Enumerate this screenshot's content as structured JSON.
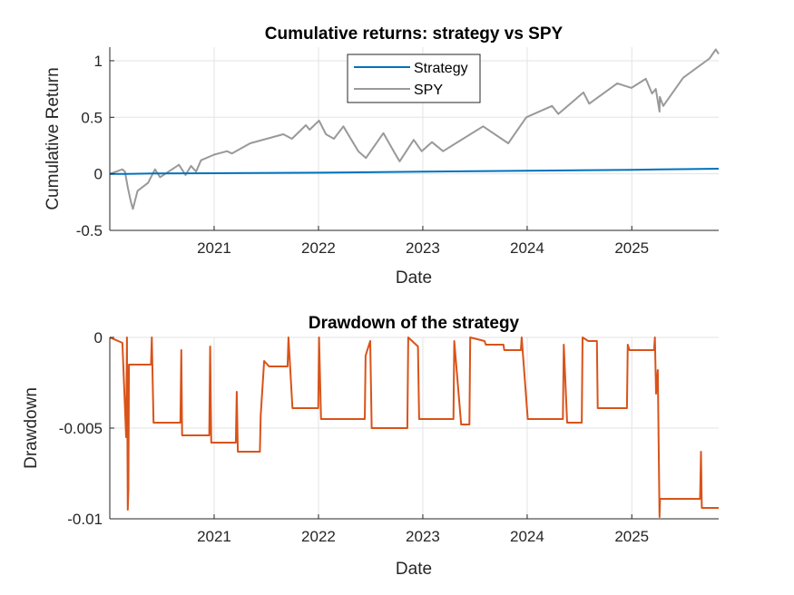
{
  "chart_data": [
    {
      "type": "line",
      "title": "Cumulative returns: strategy vs SPY",
      "xlabel": "Date",
      "ylabel": "Cumulative Return",
      "xlim": [
        "2020-01-02",
        "2025-11-01"
      ],
      "ylim": [
        -0.5,
        1.12
      ],
      "xticks": [
        "2021",
        "2022",
        "2023",
        "2024",
        "2025"
      ],
      "yticks": [
        1,
        0.5,
        0,
        -0.5
      ],
      "ytick_labels": [
        "1",
        "0.5",
        "0",
        "-0.5"
      ],
      "grid": true,
      "legend": "top-center",
      "series": [
        {
          "name": "Strategy",
          "color": "#0072BD",
          "points": [
            [
              "2020-01-02",
              0.0
            ],
            [
              "2020-03-01",
              0.0
            ],
            [
              "2020-06-01",
              0.003
            ],
            [
              "2021-01-01",
              0.005
            ],
            [
              "2022-01-01",
              0.01
            ],
            [
              "2023-01-01",
              0.02
            ],
            [
              "2024-01-01",
              0.028
            ],
            [
              "2025-01-01",
              0.036
            ],
            [
              "2025-04-10",
              0.04
            ],
            [
              "2025-11-01",
              0.045
            ]
          ]
        },
        {
          "name": "SPY",
          "color": "#999999",
          "points": [
            [
              "2020-01-02",
              0.0
            ],
            [
              "2020-02-15",
              0.04
            ],
            [
              "2020-02-24",
              0.02
            ],
            [
              "2020-03-05",
              -0.12
            ],
            [
              "2020-03-16",
              -0.25
            ],
            [
              "2020-03-23",
              -0.31
            ],
            [
              "2020-04-08",
              -0.15
            ],
            [
              "2020-05-15",
              -0.08
            ],
            [
              "2020-06-08",
              0.04
            ],
            [
              "2020-06-26",
              -0.03
            ],
            [
              "2020-08-31",
              0.08
            ],
            [
              "2020-09-23",
              -0.01
            ],
            [
              "2020-10-12",
              0.07
            ],
            [
              "2020-10-30",
              0.02
            ],
            [
              "2020-11-16",
              0.12
            ],
            [
              "2021-01-01",
              0.17
            ],
            [
              "2021-02-15",
              0.2
            ],
            [
              "2021-03-04",
              0.18
            ],
            [
              "2021-05-07",
              0.27
            ],
            [
              "2021-08-31",
              0.35
            ],
            [
              "2021-09-30",
              0.31
            ],
            [
              "2021-11-18",
              0.43
            ],
            [
              "2021-12-01",
              0.39
            ],
            [
              "2022-01-03",
              0.47
            ],
            [
              "2022-01-27",
              0.35
            ],
            [
              "2022-02-24",
              0.31
            ],
            [
              "2022-03-29",
              0.42
            ],
            [
              "2022-05-20",
              0.2
            ],
            [
              "2022-06-16",
              0.14
            ],
            [
              "2022-08-16",
              0.36
            ],
            [
              "2022-09-30",
              0.16
            ],
            [
              "2022-10-12",
              0.11
            ],
            [
              "2022-11-30",
              0.3
            ],
            [
              "2022-12-28",
              0.2
            ],
            [
              "2023-02-02",
              0.28
            ],
            [
              "2023-03-13",
              0.2
            ],
            [
              "2023-07-31",
              0.42
            ],
            [
              "2023-10-27",
              0.27
            ],
            [
              "2023-12-29",
              0.5
            ],
            [
              "2024-03-28",
              0.6
            ],
            [
              "2024-04-19",
              0.53
            ],
            [
              "2024-07-16",
              0.72
            ],
            [
              "2024-08-05",
              0.62
            ],
            [
              "2024-11-11",
              0.8
            ],
            [
              "2024-12-31",
              0.76
            ],
            [
              "2025-02-19",
              0.84
            ],
            [
              "2025-03-13",
              0.71
            ],
            [
              "2025-03-26",
              0.75
            ],
            [
              "2025-04-08",
              0.55
            ],
            [
              "2025-04-09",
              0.68
            ],
            [
              "2025-04-21",
              0.6
            ],
            [
              "2025-06-30",
              0.85
            ],
            [
              "2025-09-30",
              1.02
            ],
            [
              "2025-10-22",
              1.1
            ],
            [
              "2025-11-01",
              1.06
            ]
          ]
        }
      ]
    },
    {
      "type": "line",
      "title": "Drawdown of the strategy",
      "xlabel": "Date",
      "ylabel": "Drawdown",
      "xlim": [
        "2020-01-02",
        "2025-11-01"
      ],
      "ylim": [
        -0.01,
        0
      ],
      "xticks": [
        "2021",
        "2022",
        "2023",
        "2024",
        "2025"
      ],
      "yticks": [
        0,
        -0.005,
        -0.01
      ],
      "ytick_labels": [
        "0",
        "-0.005",
        "-0.01"
      ],
      "grid": true,
      "series": [
        {
          "color": "#D95319",
          "step_points": [
            [
              "2020-01-02",
              0
            ],
            [
              "2020-02-15",
              -0.0003
            ],
            [
              "2020-02-28",
              -0.0055
            ],
            [
              "2020-03-02",
              0
            ],
            [
              "2020-03-05",
              -0.0095
            ],
            [
              "2020-03-07",
              -0.0084
            ],
            [
              "2020-03-09",
              -0.0015
            ],
            [
              "2020-05-25",
              -0.0015
            ],
            [
              "2020-05-28",
              0
            ],
            [
              "2020-06-03",
              -0.0047
            ],
            [
              "2020-09-05",
              -0.0047
            ],
            [
              "2020-09-08",
              -0.0007
            ],
            [
              "2020-09-11",
              -0.0054
            ],
            [
              "2020-12-15",
              -0.0054
            ],
            [
              "2020-12-18",
              -0.0005
            ],
            [
              "2020-12-22",
              -0.0058
            ],
            [
              "2021-03-18",
              -0.0058
            ],
            [
              "2021-03-21",
              -0.003
            ],
            [
              "2021-03-25",
              -0.0063
            ],
            [
              "2021-06-10",
              -0.0063
            ],
            [
              "2021-06-13",
              -0.0043
            ],
            [
              "2021-06-25",
              -0.0013
            ],
            [
              "2021-07-12",
              -0.0016
            ],
            [
              "2021-09-15",
              -0.0016
            ],
            [
              "2021-09-18",
              0
            ],
            [
              "2021-10-02",
              -0.0039
            ],
            [
              "2021-12-31",
              -0.0039
            ],
            [
              "2022-01-03",
              0
            ],
            [
              "2022-01-10",
              -0.0045
            ],
            [
              "2022-06-12",
              -0.0045
            ],
            [
              "2022-06-15",
              -0.001
            ],
            [
              "2022-07-01",
              -0.0002
            ],
            [
              "2022-07-06",
              -0.005
            ],
            [
              "2022-11-08",
              -0.005
            ],
            [
              "2022-11-11",
              0
            ],
            [
              "2022-12-15",
              -0.0005
            ],
            [
              "2022-12-19",
              -0.0045
            ],
            [
              "2023-04-18",
              -0.0045
            ],
            [
              "2023-04-21",
              -0.0002
            ],
            [
              "2023-05-15",
              -0.0048
            ],
            [
              "2023-06-13",
              -0.0048
            ],
            [
              "2023-06-16",
              0
            ],
            [
              "2023-08-05",
              -0.0002
            ],
            [
              "2023-08-09",
              -0.0004
            ],
            [
              "2023-10-10",
              -0.0004
            ],
            [
              "2023-10-13",
              -0.0007
            ],
            [
              "2023-12-10",
              -0.0007
            ],
            [
              "2023-12-13",
              0
            ],
            [
              "2024-01-03",
              -0.0045
            ],
            [
              "2024-05-05",
              -0.0045
            ],
            [
              "2024-05-08",
              -0.0004
            ],
            [
              "2024-05-20",
              -0.0047
            ],
            [
              "2024-07-10",
              -0.0047
            ],
            [
              "2024-07-13",
              0
            ],
            [
              "2024-08-02",
              -0.0002
            ],
            [
              "2024-09-01",
              -0.0002
            ],
            [
              "2024-09-04",
              -0.0039
            ],
            [
              "2024-12-15",
              -0.0039
            ],
            [
              "2024-12-18",
              -0.0004
            ],
            [
              "2024-12-24",
              -0.0007
            ],
            [
              "2025-03-20",
              -0.0007
            ],
            [
              "2025-03-23",
              0
            ],
            [
              "2025-03-27",
              -0.0031
            ],
            [
              "2025-04-02",
              -0.0018
            ],
            [
              "2025-04-08",
              -0.0099
            ],
            [
              "2025-04-10",
              -0.0089
            ],
            [
              "2025-08-28",
              -0.0089
            ],
            [
              "2025-08-31",
              -0.0063
            ],
            [
              "2025-09-03",
              -0.0094
            ],
            [
              "2025-11-01",
              -0.0094
            ]
          ]
        }
      ]
    }
  ]
}
